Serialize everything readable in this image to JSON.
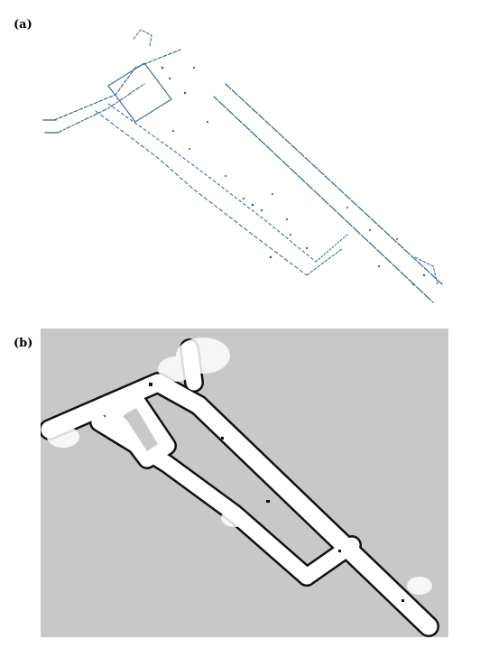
{
  "figure": {
    "panel_a": {
      "label": "(a)"
    },
    "panel_b": {
      "label": "(b)"
    }
  },
  "colors": {
    "occupancy_unknown": "#c8c8c8",
    "free_space": "#ffffff",
    "wall": "#111111",
    "scan_point_primary": "#2b5f8c",
    "scan_point_secondary": "#8a6a3c"
  }
}
